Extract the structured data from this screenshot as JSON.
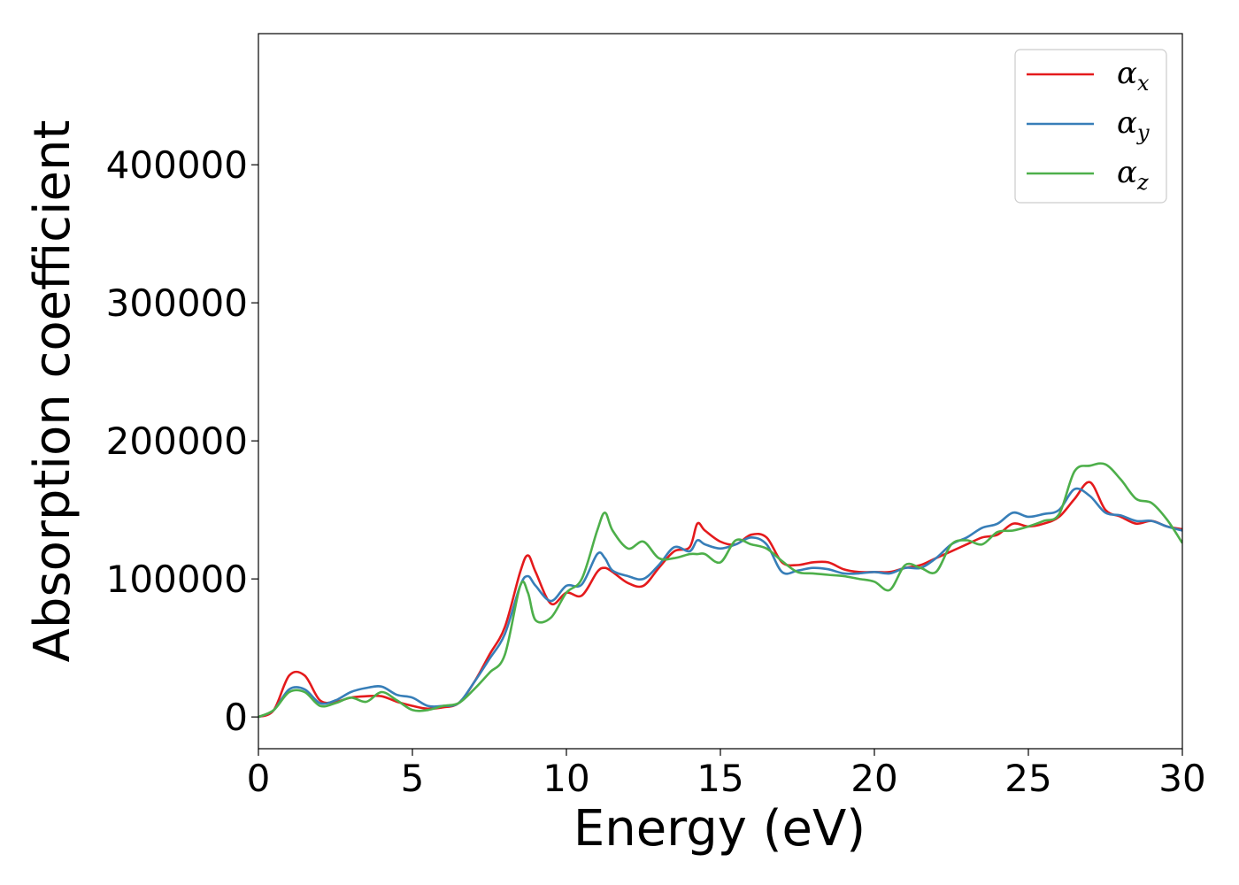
{
  "chart_data": {
    "type": "line",
    "xlabel": "Energy (eV)",
    "ylabel": "Absorption coefficient",
    "xlim": [
      0,
      30
    ],
    "ylim": [
      -23000,
      495000
    ],
    "xticks": [
      0,
      5,
      10,
      15,
      20,
      25,
      30
    ],
    "yticks": [
      0,
      100000,
      200000,
      300000,
      400000
    ],
    "grid": false,
    "legend_position": "top-right",
    "x": [
      0,
      0.5,
      1,
      1.5,
      2,
      2.5,
      3,
      3.5,
      4,
      4.5,
      5,
      5.5,
      6,
      6.5,
      7,
      7.5,
      8,
      8.5,
      8.75,
      9,
      9.5,
      10,
      10.5,
      11,
      11.25,
      11.5,
      12,
      12.5,
      13,
      13.5,
      14,
      14.25,
      14.5,
      15,
      15.5,
      16,
      16.5,
      17,
      17.5,
      18,
      18.5,
      19,
      19.5,
      20,
      20.5,
      21,
      21.5,
      22,
      22.5,
      23,
      23.5,
      24,
      24.5,
      25,
      25.5,
      26,
      26.5,
      27,
      27.5,
      28,
      28.5,
      29,
      29.5,
      30
    ],
    "series": [
      {
        "name": "α",
        "subscript": "x",
        "color": "#e41a1c",
        "values": [
          0,
          5000,
          30000,
          30000,
          12000,
          11000,
          14000,
          15000,
          15000,
          11000,
          8000,
          6000,
          7000,
          10000,
          25000,
          45000,
          65000,
          105000,
          117000,
          105000,
          82000,
          90000,
          88000,
          105000,
          108000,
          105000,
          97000,
          95000,
          108000,
          120000,
          123000,
          140000,
          135000,
          127000,
          125000,
          132000,
          130000,
          112000,
          110000,
          112000,
          112000,
          107000,
          105000,
          105000,
          105000,
          108000,
          110000,
          115000,
          120000,
          125000,
          130000,
          132000,
          140000,
          138000,
          140000,
          145000,
          158000,
          170000,
          150000,
          145000,
          140000,
          142000,
          138000,
          136000
        ]
      },
      {
        "name": "α",
        "subscript": "y",
        "color": "#377eb8",
        "values": [
          0,
          5000,
          20000,
          20000,
          10000,
          12000,
          18000,
          21000,
          22000,
          16000,
          14000,
          8000,
          8000,
          10000,
          25000,
          42000,
          60000,
          95000,
          102000,
          95000,
          84000,
          95000,
          96000,
          118000,
          115000,
          106000,
          102000,
          100000,
          110000,
          123000,
          120000,
          128000,
          125000,
          122000,
          125000,
          130000,
          125000,
          105000,
          106000,
          108000,
          107000,
          104000,
          104000,
          105000,
          104000,
          108000,
          108000,
          115000,
          125000,
          130000,
          137000,
          140000,
          148000,
          145000,
          147000,
          150000,
          165000,
          160000,
          148000,
          146000,
          142000,
          142000,
          138000,
          135000
        ]
      },
      {
        "name": "α",
        "subscript": "z",
        "color": "#4daf4a",
        "values": [
          0,
          5000,
          18000,
          18000,
          8000,
          10000,
          14000,
          11000,
          18000,
          12000,
          5000,
          5000,
          8000,
          10000,
          20000,
          32000,
          45000,
          95000,
          90000,
          70000,
          72000,
          90000,
          100000,
          135000,
          148000,
          135000,
          122000,
          127000,
          115000,
          115000,
          118000,
          118000,
          118000,
          112000,
          128000,
          125000,
          122000,
          113000,
          105000,
          104000,
          103000,
          102000,
          100000,
          98000,
          92000,
          110000,
          108000,
          105000,
          125000,
          128000,
          125000,
          134000,
          135000,
          138000,
          142000,
          147000,
          178000,
          182000,
          183000,
          172000,
          158000,
          155000,
          143000,
          126000
        ]
      }
    ]
  }
}
